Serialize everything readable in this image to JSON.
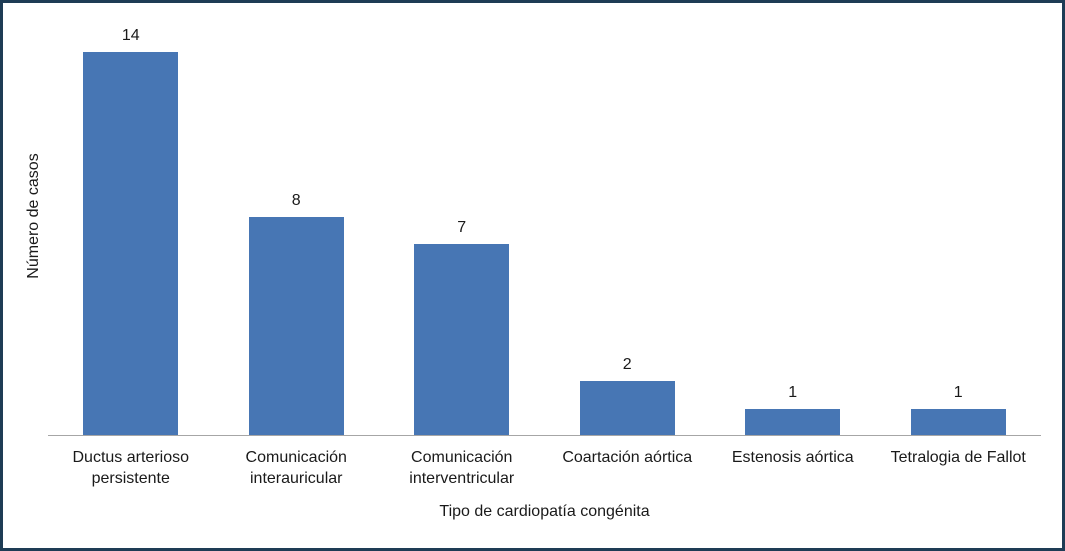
{
  "chart_data": {
    "type": "bar",
    "categories": [
      "Ductus arterioso persistente",
      "Comunicación interauricular",
      "Comunicación interventricular",
      "Coartación aórtica",
      "Estenosis aórtica",
      "Tetralogia de Fallot"
    ],
    "values": [
      14,
      8,
      7,
      2,
      1,
      1
    ],
    "value_labels": [
      "14",
      "8",
      "7",
      "2",
      "1",
      "1"
    ],
    "title": "",
    "xlabel": "Tipo de cardiopatía congénita",
    "ylabel": "Número de casos",
    "ylim": [
      0,
      14
    ],
    "grid": false,
    "legend": "none",
    "colors": {
      "bar": "#4776B4",
      "axis_line": "#A6A6A6",
      "frame_border": "#1E3C55",
      "text": "#1a1a1a",
      "background": "#ffffff"
    }
  }
}
